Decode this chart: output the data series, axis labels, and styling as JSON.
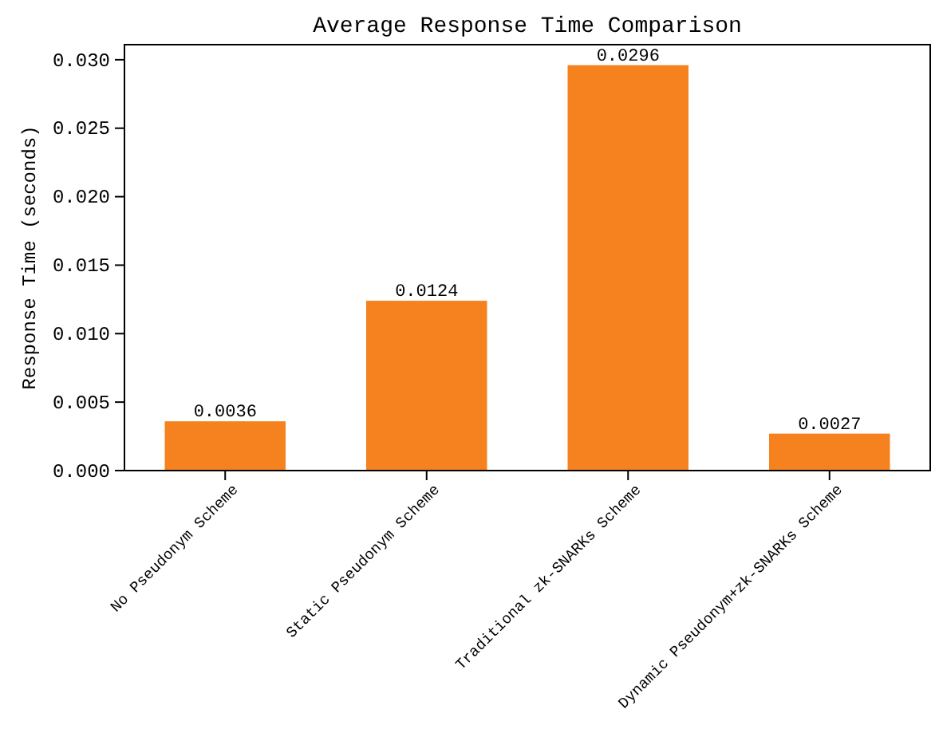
{
  "chart_data": {
    "type": "bar",
    "title": "Average Response Time Comparison",
    "ylabel": "Response Time (seconds)",
    "categories": [
      "No Pseudonym Scheme",
      "Static Pseudonym Scheme",
      "Traditional zk-SNARKs Scheme",
      "Dynamic Pseudonym+zk-SNARKs Scheme"
    ],
    "values": [
      0.0036,
      0.0124,
      0.0296,
      0.0027
    ],
    "color": "#f5821f",
    "ylim": [
      0,
      0.0311
    ],
    "yticks": [
      {
        "value": 0,
        "label": "0.000"
      },
      {
        "value": 0.005,
        "label": "0.005"
      },
      {
        "value": 0.01,
        "label": "0.010"
      },
      {
        "value": 0.015,
        "label": "0.015"
      },
      {
        "value": 0.02,
        "label": "0.020"
      },
      {
        "value": 0.025,
        "label": "0.025"
      },
      {
        "value": 0.03,
        "label": "0.030"
      }
    ],
    "data_labels": true,
    "grid": false
  }
}
